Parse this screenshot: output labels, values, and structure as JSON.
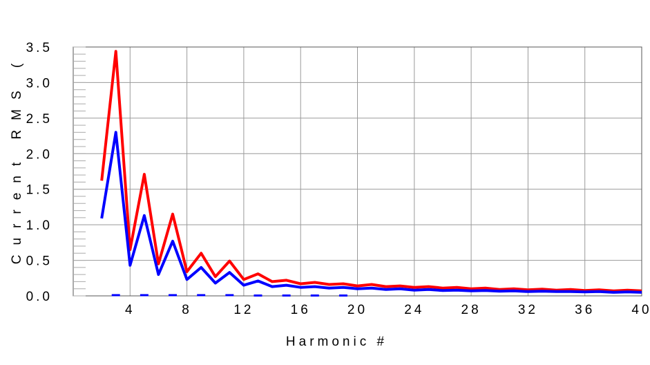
{
  "chart_data": {
    "type": "line",
    "title": "",
    "xlabel": "Harmonic #",
    "ylabel": "Current RMS (",
    "xlim": [
      0,
      40
    ],
    "ylim": [
      0,
      3.5
    ],
    "x_ticks": [
      4,
      8,
      12,
      16,
      20,
      24,
      28,
      32,
      36,
      40
    ],
    "x_tick_labels": [
      "4",
      "8",
      "12",
      "16",
      "20",
      "24",
      "28",
      "32",
      "36",
      "40"
    ],
    "y_ticks": [
      0,
      0.5,
      1.0,
      1.5,
      2.0,
      2.5,
      3.0,
      3.5
    ],
    "y_tick_labels": [
      "0.0",
      "0.5",
      "1.0",
      "1.5",
      "2.0",
      "2.5",
      "3.0",
      "3.5"
    ],
    "grid": true,
    "x": [
      2,
      3,
      4,
      5,
      6,
      7,
      8,
      9,
      10,
      11,
      12,
      13,
      14,
      15,
      16,
      17,
      18,
      19,
      20,
      21,
      22,
      23,
      24,
      25,
      26,
      27,
      28,
      29,
      30,
      31,
      32,
      33,
      34,
      35,
      36,
      37,
      38,
      39,
      40
    ],
    "series": [
      {
        "color": "#ff0000",
        "style": "solid",
        "values": [
          1.62,
          3.44,
          0.65,
          1.71,
          0.45,
          1.15,
          0.34,
          0.6,
          0.27,
          0.49,
          0.23,
          0.31,
          0.2,
          0.22,
          0.17,
          0.19,
          0.16,
          0.17,
          0.14,
          0.16,
          0.13,
          0.14,
          0.12,
          0.13,
          0.11,
          0.12,
          0.1,
          0.11,
          0.09,
          0.1,
          0.085,
          0.095,
          0.08,
          0.09,
          0.075,
          0.085,
          0.07,
          0.08,
          0.07
        ]
      },
      {
        "color": "#0000ff",
        "style": "solid",
        "values": [
          1.09,
          2.3,
          0.43,
          1.13,
          0.3,
          0.77,
          0.23,
          0.4,
          0.18,
          0.33,
          0.15,
          0.21,
          0.13,
          0.15,
          0.12,
          0.13,
          0.11,
          0.12,
          0.1,
          0.11,
          0.09,
          0.1,
          0.08,
          0.09,
          0.075,
          0.08,
          0.07,
          0.075,
          0.065,
          0.07,
          0.06,
          0.065,
          0.06,
          0.06,
          0.055,
          0.06,
          0.05,
          0.055,
          0.05
        ]
      },
      {
        "color": "#0000ff",
        "style": "dashed",
        "x": [
          3,
          5,
          7,
          9,
          11,
          13,
          15,
          17,
          19
        ],
        "values": [
          0.01,
          0.01,
          0.01,
          0.01,
          0.01,
          0.005,
          0.005,
          0.005,
          0.005
        ]
      }
    ]
  }
}
